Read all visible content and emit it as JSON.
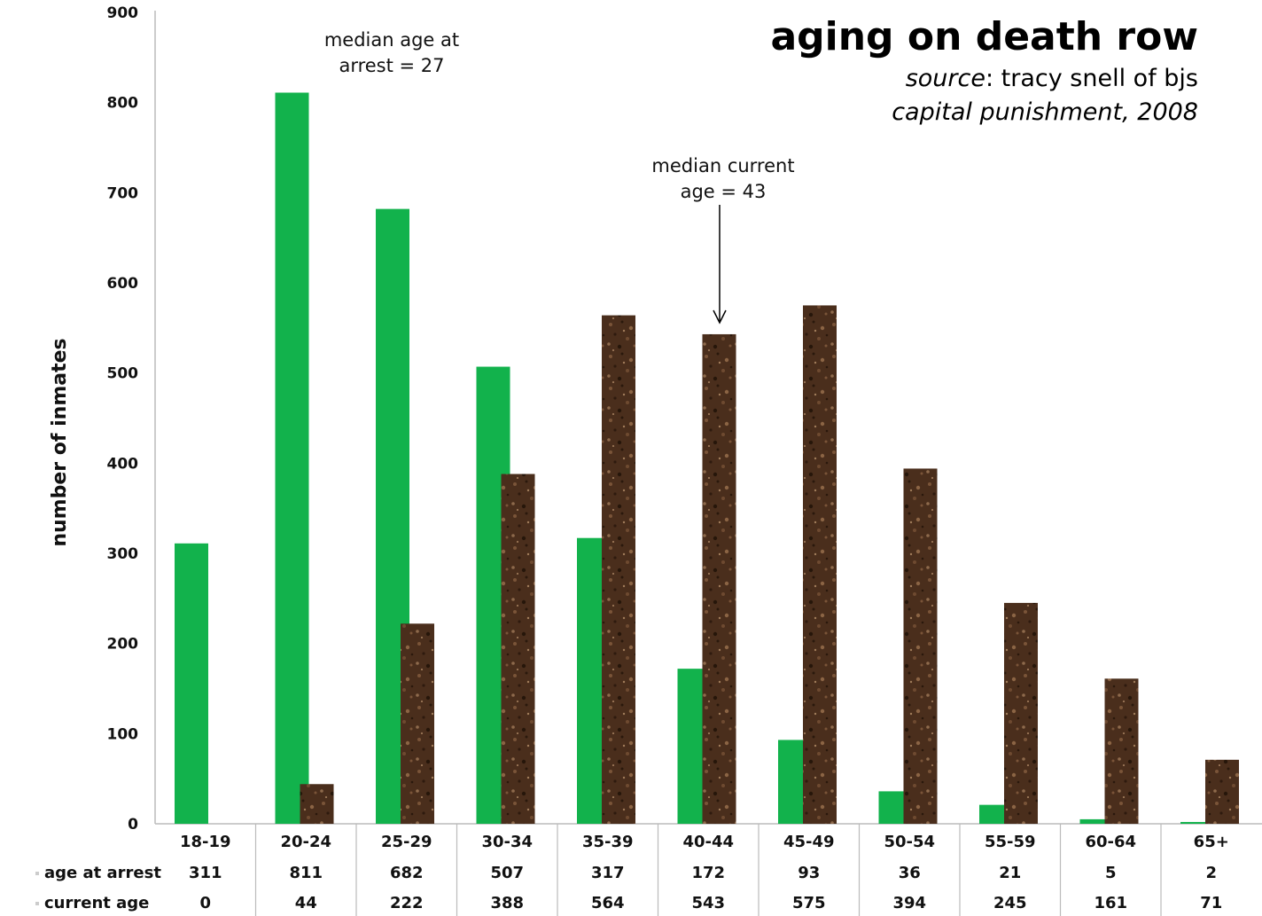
{
  "chart_data": {
    "type": "bar",
    "title": "aging on death row",
    "subtitle_source_label": "source",
    "subtitle_source_text": ": tracy snell of bjs",
    "subtitle_publication_title": "capital punishment",
    "subtitle_publication_year": ", 2008",
    "ylabel": "number of inmates",
    "xlabel": "",
    "ylim": [
      0,
      900
    ],
    "yticks": [
      0,
      100,
      200,
      300,
      400,
      500,
      600,
      700,
      800,
      900
    ],
    "categories": [
      "18-19",
      "20-24",
      "25-29",
      "30-34",
      "35-39",
      "40-44",
      "45-49",
      "50-54",
      "55-59",
      "60-64",
      "65+"
    ],
    "series": [
      {
        "name": "age at arrest",
        "color": "#12b24c",
        "values": [
          311,
          811,
          682,
          507,
          317,
          172,
          93,
          36,
          21,
          5,
          2
        ]
      },
      {
        "name": "current age",
        "color": "#4a2e1c",
        "values": [
          0,
          44,
          222,
          388,
          564,
          543,
          575,
          394,
          245,
          161,
          71
        ]
      }
    ],
    "annotations": [
      {
        "text_line1": "median age at",
        "text_line2": "arrest = 27"
      },
      {
        "text_line1": "median current",
        "text_line2": "age = 43",
        "arrow": true
      }
    ],
    "grid": false,
    "legend": "table-below"
  }
}
